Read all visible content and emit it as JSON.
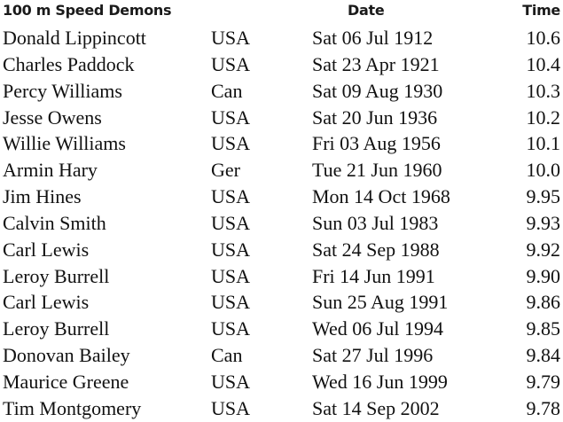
{
  "header": {
    "title": "100 m Speed Demons",
    "date": "Date",
    "time": "Time"
  },
  "rows": [
    {
      "name": "Donald Lippincott",
      "country": "USA",
      "date": "Sat 06 Jul 1912",
      "time": "10.6"
    },
    {
      "name": "Charles Paddock",
      "country": "USA",
      "date": "Sat 23 Apr 1921",
      "time": "10.4"
    },
    {
      "name": "Percy Williams",
      "country": "Can",
      "date": "Sat 09 Aug 1930",
      "time": "10.3"
    },
    {
      "name": "Jesse Owens",
      "country": "USA",
      "date": "Sat 20 Jun 1936",
      "time": "10.2"
    },
    {
      "name": "Willie Williams",
      "country": "USA",
      "date": "Fri 03 Aug 1956",
      "time": "10.1"
    },
    {
      "name": "Armin Hary",
      "country": "Ger",
      "date": "Tue 21 Jun 1960",
      "time": "10.0"
    },
    {
      "name": "Jim Hines",
      "country": "USA",
      "date": "Mon 14 Oct 1968",
      "time": "9.95"
    },
    {
      "name": "Calvin Smith",
      "country": "USA",
      "date": "Sun 03 Jul 1983",
      "time": "9.93"
    },
    {
      "name": "Carl Lewis",
      "country": "USA",
      "date": "Sat 24 Sep 1988",
      "time": "9.92"
    },
    {
      "name": "Leroy Burrell",
      "country": "USA",
      "date": "Fri 14 Jun 1991",
      "time": "9.90"
    },
    {
      "name": "Carl Lewis",
      "country": "USA",
      "date": "Sun 25 Aug 1991",
      "time": "9.86"
    },
    {
      "name": "Leroy Burrell",
      "country": "USA",
      "date": "Wed 06 Jul 1994",
      "time": "9.85"
    },
    {
      "name": "Donovan Bailey",
      "country": "Can",
      "date": "Sat 27 Jul 1996",
      "time": "9.84"
    },
    {
      "name": "Maurice Greene",
      "country": "USA",
      "date": "Wed 16 Jun 1999",
      "time": "9.79"
    },
    {
      "name": "Tim Montgomery",
      "country": "USA",
      "date": "Sat 14 Sep 2002",
      "time": "9.78"
    }
  ]
}
